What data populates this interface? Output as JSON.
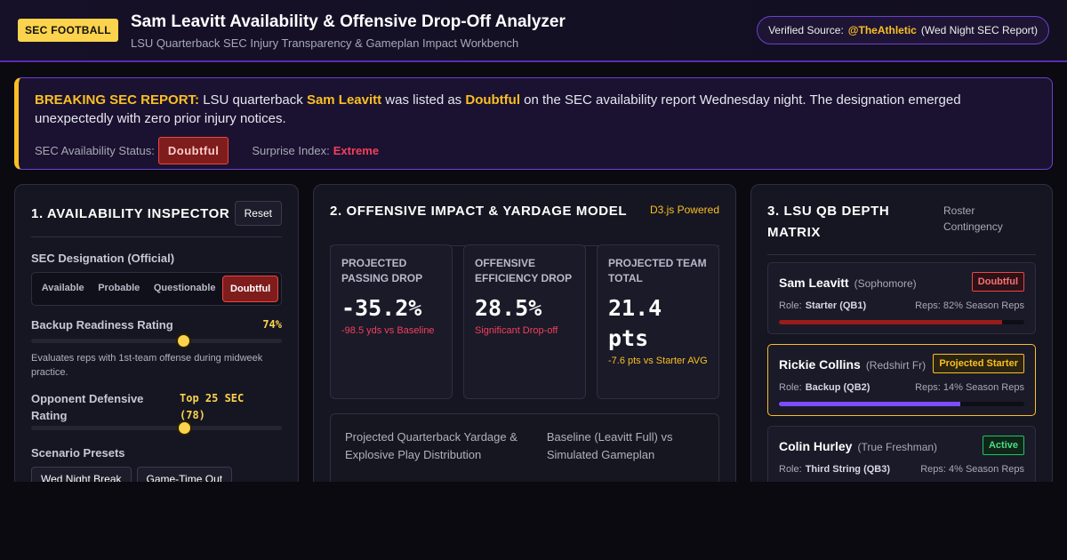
{
  "header": {
    "badge": "SEC FOOTBALL",
    "title": "Sam Leavitt Availability & Offensive Drop-Off Analyzer",
    "subtitle": "LSU Quarterback SEC Injury Transparency & Gameplan Impact Workbench",
    "source": {
      "label": "Verified Source:",
      "handle": "@TheAthletic",
      "note": "(Wed Night SEC Report)"
    }
  },
  "alert": {
    "segments": [
      {
        "text": "BREAKING SEC REPORT:",
        "style": "lead"
      },
      {
        "text": " LSU quarterback ",
        "style": "plain"
      },
      {
        "text": "Sam Leavitt",
        "style": "gold"
      },
      {
        "text": " was listed as ",
        "style": "plain"
      },
      {
        "text": "Doubtful",
        "style": "gold"
      },
      {
        "text": " on the SEC availability report Wednesday night. The designation emerged unexpectedly with zero prior injury notices.",
        "style": "plain"
      }
    ],
    "status_label": "SEC Availability Status:",
    "status": "Doubtful",
    "surprise_label": "Surprise Index:",
    "surprise": "Extreme"
  },
  "inspector": {
    "title": "1. AVAILABILITY INSPECTOR",
    "reset": "Reset",
    "designation_label": "SEC Designation (Official)",
    "options": [
      "Available",
      "Probable",
      "Questionable",
      "Doubtful"
    ],
    "selected": 3,
    "backup_label": "Backup Readiness Rating",
    "backup_value": "74%",
    "backup_help": "Evaluates reps with 1st-team offense during midweek practice.",
    "opponent_label": "Opponent Defensive Rating",
    "opponent_value": "Top 25 SEC (78)",
    "presets_label": "Scenario Presets",
    "presets": [
      "Wed Night Break",
      "Game-Time Out"
    ]
  },
  "impact": {
    "title": "2. OFFENSIVE IMPACT & YARDAGE MODEL",
    "tag": "D3.js Powered",
    "metrics": [
      {
        "label": "PROJECTED PASSING DROP",
        "value": "-35.2%",
        "sub": "-98.5 yds vs Baseline",
        "tone": "red"
      },
      {
        "label": "OFFENSIVE EFFICIENCY DROP",
        "value": "28.5%",
        "sub": "Significant Drop-off",
        "tone": "red"
      },
      {
        "label": "PROJECTED TEAM TOTAL",
        "value": "21.4 pts",
        "sub": "-7.6 pts vs Starter AVG",
        "tone": "gold"
      }
    ],
    "chart_title": "Projected Quarterback Yardage & Explosive Play Distribution",
    "chart_subtitle": "Baseline (Leavitt Full) vs Simulated Gameplan"
  },
  "depth": {
    "title": "3. LSU QB DEPTH MATRIX",
    "tag": "Roster Contingency",
    "role_label": "Role:",
    "players": [
      {
        "name": "Sam Leavitt",
        "class": "(Sophomore)",
        "status": "Doubtful",
        "tone": "red",
        "role": "Starter (QB1)",
        "reps": "Reps: 82% Season Reps"
      },
      {
        "name": "Rickie Collins",
        "class": "(Redshirt Fr)",
        "status": "Projected Starter",
        "tone": "gold",
        "role": "Backup (QB2)",
        "reps": "Reps: 14% Season Reps"
      },
      {
        "name": "Colin Hurley",
        "class": "(True Freshman)",
        "status": "Active",
        "tone": "green",
        "role": "Third String (QB3)",
        "reps": "Reps: 4% Season Reps"
      }
    ]
  }
}
